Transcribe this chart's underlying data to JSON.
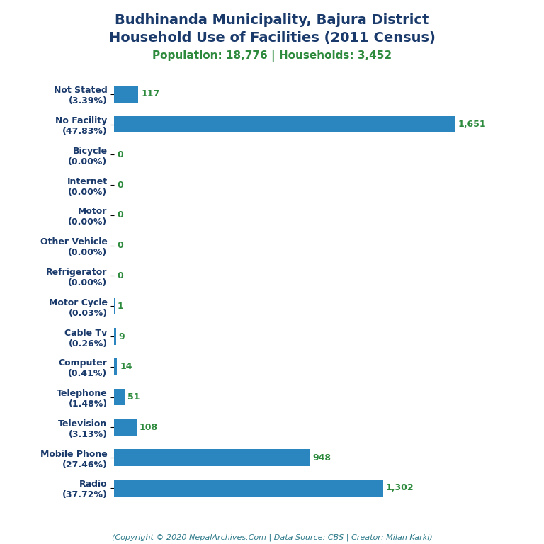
{
  "title_line1": "Budhinanda Municipality, Bajura District",
  "title_line2": "Household Use of Facilities (2011 Census)",
  "subtitle": "Population: 18,776 | Households: 3,452",
  "footer": "(Copyright © 2020 NepalArchives.Com | Data Source: CBS | Creator: Milan Karki)",
  "title_color": "#1a3a6b",
  "subtitle_color": "#2e8b3e",
  "footer_color": "#2e7a8a",
  "bar_color": "#2b86c0",
  "value_color": "#2e8b3e",
  "label_color": "#1a3a6b",
  "categories": [
    "Not Stated\n(3.39%)",
    "No Facility\n(47.83%)",
    "Bicycle\n(0.00%)",
    "Internet\n(0.00%)",
    "Motor\n(0.00%)",
    "Other Vehicle\n(0.00%)",
    "Refrigerator\n(0.00%)",
    "Motor Cycle\n(0.03%)",
    "Cable Tv\n(0.26%)",
    "Computer\n(0.41%)",
    "Telephone\n(1.48%)",
    "Television\n(3.13%)",
    "Mobile Phone\n(27.46%)",
    "Radio\n(37.72%)"
  ],
  "values": [
    117,
    1651,
    0,
    0,
    0,
    0,
    0,
    1,
    9,
    14,
    51,
    108,
    948,
    1302
  ],
  "value_labels": [
    "117",
    "1,651",
    "0",
    "0",
    "0",
    "0",
    "0",
    "1",
    "9",
    "14",
    "51",
    "108",
    "948",
    "1,302"
  ],
  "figsize": [
    7.68,
    7.68
  ],
  "dpi": 100,
  "background_color": "#ffffff",
  "title_fontsize": 14,
  "subtitle_fontsize": 11,
  "label_fontsize": 9,
  "value_fontsize": 9,
  "footer_fontsize": 8
}
